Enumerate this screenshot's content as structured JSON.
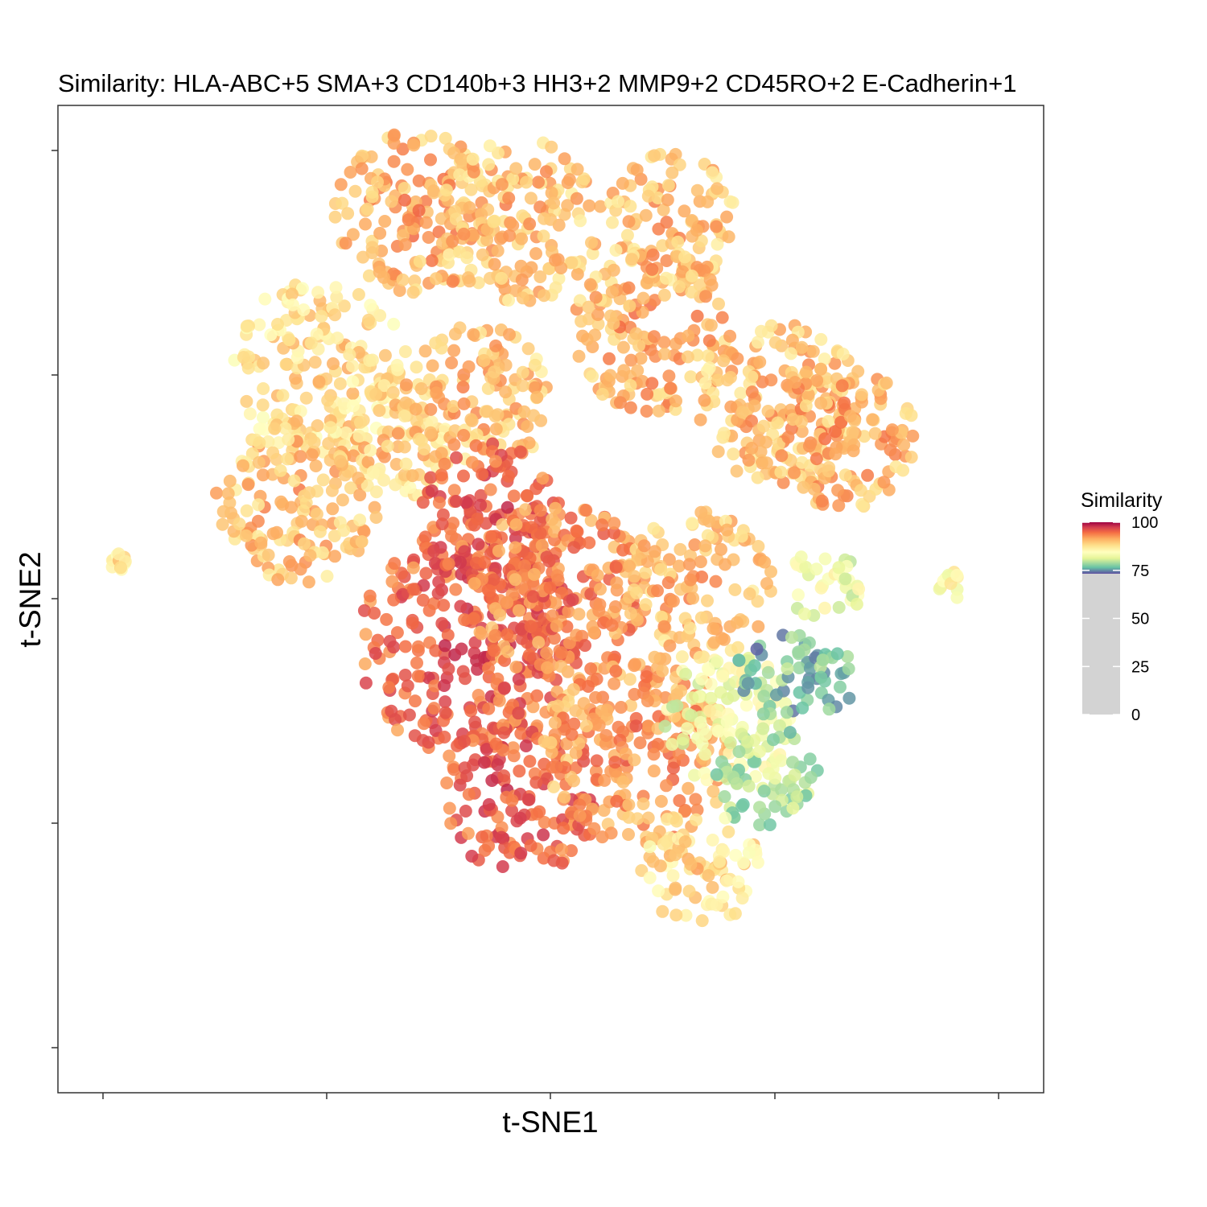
{
  "chart_data": {
    "type": "scatter",
    "title": "Similarity: HLA-ABC+5 SMA+3 CD140b+3 HH3+2 MMP9+2 CD45RO+2 E-Cadherin+1",
    "xlabel": "t-SNE1",
    "ylabel": "t-SNE2",
    "x_tick_labels_shown": false,
    "y_tick_labels_shown": false,
    "grid": false,
    "legend_placement": "right",
    "color_scale": {
      "title": "Similarity",
      "range": [
        0,
        100
      ],
      "ticks": [
        100,
        75,
        50,
        25,
        0
      ],
      "palette": "Spectral",
      "below_threshold_color": "#d3d3d3",
      "threshold": 73,
      "colors": [
        "#5e4fa2",
        "#66c2a5",
        "#e6f598",
        "#ffffbf",
        "#fee08b",
        "#fdae61",
        "#f46d43",
        "#d53e4f",
        "#9e0142"
      ]
    },
    "clusters": [
      {
        "cx": -1.55,
        "cy": 1.55,
        "r": 0.6,
        "similarity": 88
      },
      {
        "cx": -1.7,
        "cy": 0.65,
        "r": 0.55,
        "similarity": 90
      },
      {
        "cx": -1.05,
        "cy": 1.05,
        "r": 0.4,
        "similarity": 89
      },
      {
        "cx": -0.9,
        "cy": 2.6,
        "r": 0.55,
        "similarity": 91
      },
      {
        "cx": -0.2,
        "cy": 2.55,
        "r": 0.55,
        "similarity": 90
      },
      {
        "cx": 0.8,
        "cy": 2.55,
        "r": 0.45,
        "similarity": 90
      },
      {
        "cx": 0.7,
        "cy": 1.8,
        "r": 0.55,
        "similarity": 91
      },
      {
        "cx": -0.5,
        "cy": 1.35,
        "r": 0.5,
        "similarity": 90
      },
      {
        "cx": 1.55,
        "cy": 1.3,
        "r": 0.55,
        "similarity": 90
      },
      {
        "cx": 1.95,
        "cy": 1.1,
        "r": 0.5,
        "similarity": 91
      },
      {
        "cx": -0.4,
        "cy": 0.55,
        "r": 0.5,
        "similarity": 95
      },
      {
        "cx": -0.55,
        "cy": -0.3,
        "r": 0.75,
        "similarity": 95
      },
      {
        "cx": 0.05,
        "cy": 0.05,
        "r": 0.6,
        "similarity": 93
      },
      {
        "cx": -0.2,
        "cy": -1.3,
        "r": 0.55,
        "similarity": 95
      },
      {
        "cx": 0.6,
        "cy": -1.0,
        "r": 0.65,
        "similarity": 92
      },
      {
        "cx": 1.0,
        "cy": 0.1,
        "r": 0.5,
        "similarity": 90
      },
      {
        "cx": 1.2,
        "cy": -0.8,
        "r": 0.45,
        "similarity": 84
      },
      {
        "cx": 1.45,
        "cy": -1.2,
        "r": 0.35,
        "similarity": 80
      },
      {
        "cx": 1.55,
        "cy": -0.5,
        "r": 0.3,
        "similarity": 78
      },
      {
        "cx": 1.0,
        "cy": -1.8,
        "r": 0.4,
        "similarity": 88
      },
      {
        "cx": 1.85,
        "cy": 0.1,
        "r": 0.25,
        "similarity": 84
      },
      {
        "cx": 1.9,
        "cy": -0.55,
        "r": 0.2,
        "similarity": 78
      },
      {
        "cx": 2.7,
        "cy": 0.1,
        "r": 0.1,
        "similarity": 86
      },
      {
        "cx": -2.9,
        "cy": 0.25,
        "r": 0.06,
        "similarity": 87
      }
    ]
  }
}
